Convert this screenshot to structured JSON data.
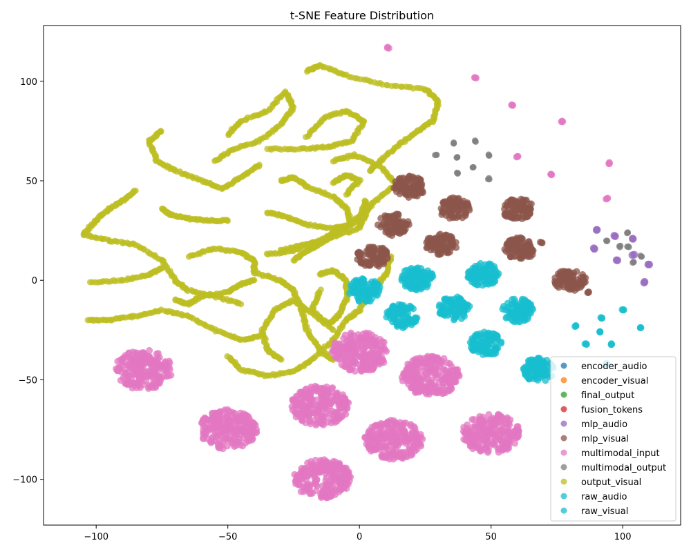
{
  "chart_data": {
    "type": "scatter",
    "title": "t-SNE Feature Distribution",
    "xlabel": "",
    "ylabel": "",
    "xlim": [
      -120,
      122
    ],
    "ylim": [
      -123,
      128
    ],
    "xticks": [
      -100,
      -50,
      0,
      50,
      100
    ],
    "yticks": [
      -100,
      -50,
      0,
      50,
      100
    ],
    "grid": false,
    "legend_position": "lower-right",
    "series": [
      {
        "name": "encoder_audio",
        "color": "#1f77b4",
        "shape": "clusters",
        "clusters": []
      },
      {
        "name": "encoder_visual",
        "color": "#ff7f0e",
        "shape": "clusters",
        "clusters": []
      },
      {
        "name": "final_output",
        "color": "#2ca02c",
        "shape": "clusters",
        "clusters": []
      },
      {
        "name": "fusion_tokens",
        "color": "#d62728",
        "shape": "clusters",
        "clusters": []
      },
      {
        "name": "mlp_audio",
        "color": "#9467bd",
        "shape": "points",
        "points": [
          [
            90,
            25
          ],
          [
            89,
            16
          ],
          [
            97,
            22
          ],
          [
            98,
            10
          ],
          [
            104,
            21
          ],
          [
            104,
            13
          ],
          [
            110,
            8
          ],
          [
            108,
            -1
          ]
        ]
      },
      {
        "name": "mlp_visual",
        "color": "#8c564b",
        "shape": "clusters",
        "clusters": [
          [
            19,
            47
          ],
          [
            36,
            36
          ],
          [
            60,
            36
          ],
          [
            13,
            28
          ],
          [
            31,
            18
          ],
          [
            61,
            16
          ],
          [
            5,
            12
          ],
          [
            80,
            0
          ]
        ],
        "extra_points": [
          [
            69,
            19
          ],
          [
            87,
            -6
          ]
        ]
      },
      {
        "name": "multimodal_input",
        "color": "#e377c2",
        "shape": "clusters",
        "clusters": [
          [
            -82,
            -45
          ],
          [
            0,
            -36
          ],
          [
            27,
            -48
          ],
          [
            -15,
            -63
          ],
          [
            -50,
            -75
          ],
          [
            13,
            -80
          ],
          [
            50,
            -77
          ],
          [
            -14,
            -100
          ]
        ],
        "extra_points": [
          [
            11,
            117
          ],
          [
            44,
            102
          ],
          [
            58,
            88
          ],
          [
            77,
            80
          ],
          [
            60,
            62
          ],
          [
            73,
            53
          ],
          [
            95,
            59
          ],
          [
            94,
            41
          ]
        ]
      },
      {
        "name": "multimodal_output",
        "color": "#7f7f7f",
        "shape": "points",
        "points": [
          [
            29,
            63
          ],
          [
            36,
            69
          ],
          [
            37,
            62
          ],
          [
            37,
            54
          ],
          [
            44,
            70
          ],
          [
            43,
            57
          ],
          [
            49,
            63
          ],
          [
            49,
            51
          ],
          [
            94,
            20
          ],
          [
            99,
            17
          ],
          [
            102,
            24
          ],
          [
            102,
            17
          ],
          [
            104,
            9
          ],
          [
            107,
            12
          ]
        ]
      },
      {
        "name": "output_visual",
        "color": "#bcbd22",
        "shape": "curves",
        "curves": [
          [
            [
              -20,
              105
            ],
            [
              -15,
              108
            ],
            [
              -5,
              103
            ],
            [
              10,
              98
            ],
            [
              25,
              96
            ],
            [
              30,
              90
            ],
            [
              28,
              80
            ],
            [
              22,
              75
            ],
            [
              15,
              68
            ],
            [
              8,
              60
            ],
            [
              4,
              55
            ]
          ],
          [
            [
              -50,
              73
            ],
            [
              -45,
              80
            ],
            [
              -35,
              85
            ],
            [
              -28,
              95
            ],
            [
              -25,
              87
            ],
            [
              -30,
              78
            ],
            [
              -38,
              70
            ],
            [
              -48,
              66
            ],
            [
              -55,
              60
            ]
          ],
          [
            [
              -75,
              75
            ],
            [
              -80,
              70
            ],
            [
              -77,
              60
            ],
            [
              -70,
              55
            ],
            [
              -60,
              50
            ],
            [
              -52,
              46
            ],
            [
              -45,
              52
            ],
            [
              -38,
              58
            ]
          ],
          [
            [
              -20,
              72
            ],
            [
              -13,
              82
            ],
            [
              -5,
              85
            ],
            [
              2,
              80
            ],
            [
              -3,
              70
            ],
            [
              -12,
              67
            ],
            [
              -22,
              66
            ],
            [
              -35,
              66
            ]
          ],
          [
            [
              -50,
              30
            ],
            [
              -58,
              30
            ],
            [
              -65,
              31
            ],
            [
              -72,
              33
            ],
            [
              -75,
              36
            ]
          ],
          [
            [
              -105,
              23
            ],
            [
              -100,
              30
            ],
            [
              -95,
              36
            ],
            [
              -90,
              40
            ],
            [
              -85,
              45
            ]
          ],
          [
            [
              -105,
              23
            ],
            [
              -95,
              20
            ],
            [
              -85,
              18
            ],
            [
              -75,
              10
            ],
            [
              -70,
              0
            ],
            [
              -65,
              -5
            ],
            [
              -55,
              -8
            ],
            [
              -45,
              -12
            ]
          ],
          [
            [
              -102,
              -1
            ],
            [
              -90,
              0
            ],
            [
              -80,
              3
            ],
            [
              -75,
              6
            ]
          ],
          [
            [
              -65,
              12
            ],
            [
              -55,
              16
            ],
            [
              -45,
              14
            ],
            [
              -40,
              10
            ],
            [
              -40,
              4
            ],
            [
              -30,
              0
            ],
            [
              -25,
              -5
            ],
            [
              -22,
              -15
            ],
            [
              -20,
              -25
            ],
            [
              -15,
              -35
            ],
            [
              -10,
              -40
            ]
          ],
          [
            [
              -70,
              -10
            ],
            [
              -65,
              -12
            ],
            [
              -60,
              -8
            ],
            [
              -50,
              -6
            ],
            [
              -45,
              -2
            ],
            [
              -40,
              0
            ]
          ],
          [
            [
              -103,
              -20
            ],
            [
              -95,
              -20
            ],
            [
              -85,
              -18
            ],
            [
              -75,
              -15
            ],
            [
              -65,
              -18
            ],
            [
              -55,
              -25
            ],
            [
              -45,
              -30
            ],
            [
              -38,
              -28
            ]
          ],
          [
            [
              -50,
              -38
            ],
            [
              -45,
              -45
            ],
            [
              -35,
              -48
            ],
            [
              -25,
              -46
            ],
            [
              -18,
              -40
            ],
            [
              -10,
              -30
            ],
            [
              -5,
              -20
            ],
            [
              0,
              -15
            ],
            [
              5,
              -5
            ],
            [
              10,
              3
            ],
            [
              12,
              12
            ]
          ],
          [
            [
              -30,
              -40
            ],
            [
              -35,
              -35
            ],
            [
              -37,
              -25
            ],
            [
              -32,
              -15
            ],
            [
              -25,
              -10
            ],
            [
              -20,
              -15
            ],
            [
              -10,
              -25
            ]
          ],
          [
            [
              -30,
              50
            ],
            [
              -25,
              52
            ],
            [
              -20,
              47
            ],
            [
              -10,
              42
            ],
            [
              -5,
              36
            ],
            [
              -3,
              28
            ],
            [
              -10,
              26
            ],
            [
              -20,
              28
            ],
            [
              -28,
              32
            ],
            [
              -35,
              34
            ]
          ],
          [
            [
              -10,
              60
            ],
            [
              -2,
              63
            ],
            [
              8,
              57
            ],
            [
              14,
              48
            ],
            [
              6,
              40
            ],
            [
              0,
              32
            ],
            [
              -8,
              24
            ],
            [
              -15,
              18
            ],
            [
              -20,
              15
            ],
            [
              -25,
              10
            ]
          ],
          [
            [
              -10,
              49
            ],
            [
              -5,
              53
            ],
            [
              0,
              50
            ],
            [
              -5,
              43
            ]
          ],
          [
            [
              -35,
              13
            ],
            [
              -25,
              15
            ],
            [
              -15,
              20
            ],
            [
              -8,
              25
            ],
            [
              0,
              30
            ],
            [
              2,
              38
            ]
          ],
          [
            [
              -30,
              15
            ],
            [
              -20,
              18
            ],
            [
              -10,
              22
            ],
            [
              0,
              26
            ],
            [
              3,
              35
            ],
            [
              2,
              40
            ]
          ],
          [
            [
              -15,
              -5
            ],
            [
              -18,
              -15
            ],
            [
              -12,
              -22
            ],
            [
              -8,
              -18
            ],
            [
              -5,
              -10
            ],
            [
              -5,
              0
            ],
            [
              -10,
              5
            ],
            [
              -15,
              3
            ]
          ]
        ]
      },
      {
        "name": "raw_audio",
        "color": "#17becf",
        "shape": "clusters",
        "clusters": [
          [
            22,
            1
          ],
          [
            47,
            3
          ],
          [
            2,
            -5
          ],
          [
            36,
            -14
          ],
          [
            16,
            -18
          ],
          [
            60,
            -15
          ],
          [
            48,
            -32
          ],
          [
            68,
            -45
          ]
        ],
        "extra_points": [
          [
            82,
            -23
          ],
          [
            92,
            -19
          ],
          [
            100,
            -15
          ],
          [
            107,
            -24
          ],
          [
            86,
            -32
          ],
          [
            91,
            -26
          ],
          [
            96,
            -32
          ],
          [
            94,
            -42
          ]
        ]
      },
      {
        "name": "raw_visual",
        "color": "#17becf",
        "shape": "clusters",
        "clusters": []
      }
    ]
  }
}
